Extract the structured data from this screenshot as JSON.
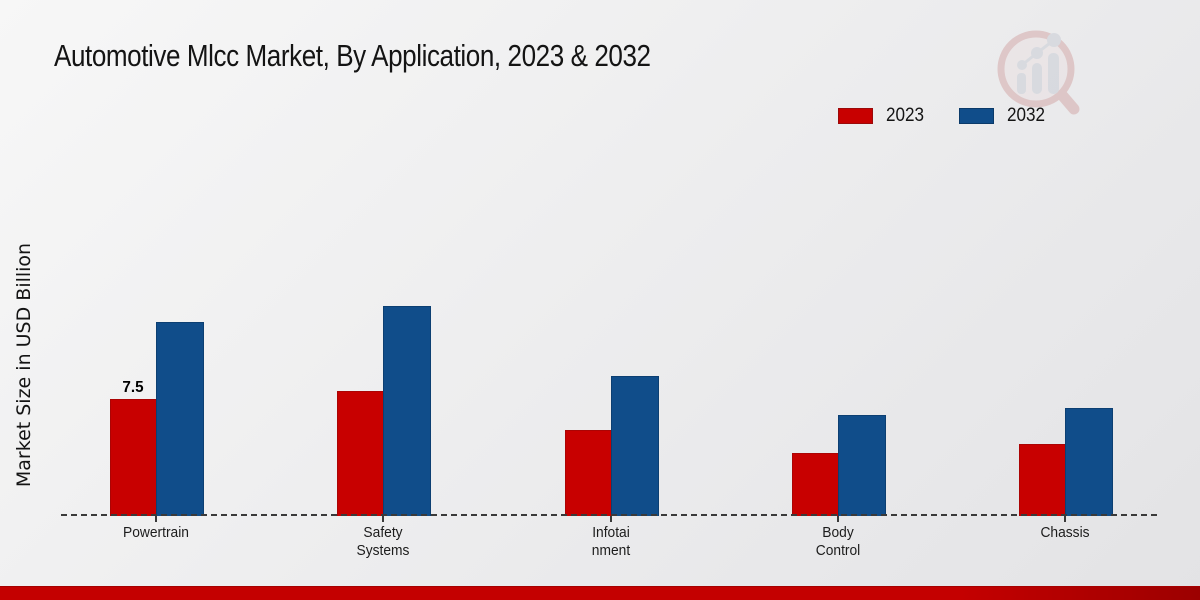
{
  "title": "Automotive Mlcc Market, By Application, 2023 & 2032",
  "ylabel": "Market Size in USD Billion",
  "legend": {
    "items": [
      {
        "label": "2023",
        "color": "#c80000"
      },
      {
        "label": "2032",
        "color": "#104d8a"
      }
    ]
  },
  "watermark": "market-research-future-logo",
  "colors": {
    "series_2023": "#c80000",
    "series_2032": "#104d8a",
    "background": "#ececec",
    "bottom_bar": "#c40000",
    "axis_dash": "#3a3a3a"
  },
  "chart_data": {
    "type": "bar",
    "title": "Automotive Mlcc Market, By Application, 2023 & 2032",
    "xlabel": "",
    "ylabel": "Market Size in USD Billion",
    "categories": [
      "Powertrain",
      "Safety Systems",
      "Infotainment",
      "Body Control",
      "Chassis"
    ],
    "category_label_lines": [
      [
        "Powertrain"
      ],
      [
        "Safety",
        "Systems"
      ],
      [
        "Infotai",
        "nment"
      ],
      [
        "Body",
        "Control"
      ],
      [
        "Chassis"
      ]
    ],
    "series": [
      {
        "name": "2023",
        "color": "#c80000",
        "values": [
          7.5,
          8.0,
          5.5,
          4.0,
          4.6
        ]
      },
      {
        "name": "2032",
        "color": "#104d8a",
        "values": [
          12.5,
          13.5,
          9.0,
          6.5,
          6.9
        ]
      }
    ],
    "data_labels": [
      {
        "series_index": 0,
        "category_index": 0,
        "text": "7.5"
      }
    ],
    "ylim": [
      0,
      15
    ],
    "grid": false,
    "axis_style": "dashed-baseline-only",
    "legend_position": "top-right"
  }
}
